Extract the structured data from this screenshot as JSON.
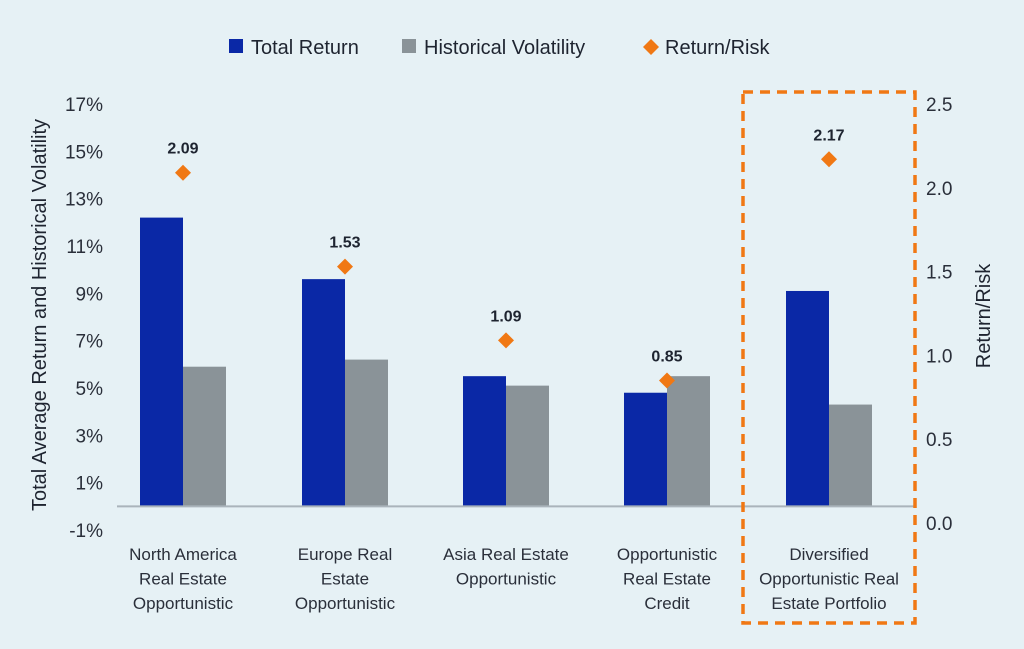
{
  "chart_data": {
    "type": "bar",
    "categories": [
      [
        "North America",
        "Real Estate",
        "Opportunistic"
      ],
      [
        "Europe Real",
        "Estate",
        "Opportunistic"
      ],
      [
        "Asia Real Estate",
        "Opportunistic"
      ],
      [
        "Opportunistic",
        "Real Estate",
        "Credit"
      ],
      [
        "Diversified",
        "Opportunistic Real",
        "Estate Portfolio"
      ]
    ],
    "series": [
      {
        "name": "Total Return",
        "axis": "left",
        "kind": "bar",
        "color": "#0a28a6",
        "values": [
          12.2,
          9.6,
          5.5,
          4.8,
          9.1
        ]
      },
      {
        "name": "Historical Volatility",
        "axis": "left",
        "kind": "bar",
        "color": "#8a9398",
        "values": [
          5.9,
          6.2,
          5.1,
          5.5,
          4.3
        ]
      },
      {
        "name": "Return/Risk",
        "axis": "right",
        "kind": "marker",
        "color": "#f07814",
        "values": [
          2.09,
          1.53,
          1.09,
          0.85,
          2.17
        ],
        "labels": [
          "2.09",
          "1.53",
          "1.09",
          "0.85",
          "2.17"
        ]
      }
    ],
    "ylabel": "Total Average Return and Historical Volatility",
    "y2label": "Return/Risk",
    "ylim": [
      -1,
      17
    ],
    "yticks": [
      "17%",
      "15%",
      "13%",
      "11%",
      "9%",
      "7%",
      "5%",
      "3%",
      "1%",
      "-1%"
    ],
    "ytick_values": [
      17,
      15,
      13,
      11,
      9,
      7,
      5,
      3,
      1,
      -1
    ],
    "y2lim": [
      0,
      2.5
    ],
    "y2ticks": [
      "2.5",
      "2.0",
      "1.5",
      "1.0",
      "0.5",
      "0.0"
    ],
    "y2tick_values": [
      2.5,
      2.0,
      1.5,
      1.0,
      0.5,
      0.0
    ],
    "legend_position": "top-center",
    "highlight_category_index": 4,
    "highlight_color": "#f07814",
    "grid": false
  }
}
